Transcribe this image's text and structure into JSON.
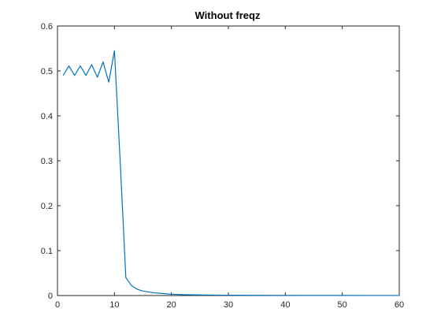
{
  "chart_data": {
    "type": "line",
    "title": "Without freqz",
    "xlabel": "",
    "ylabel": "",
    "xlim": [
      0,
      60
    ],
    "ylim": [
      0,
      0.6
    ],
    "xticks": [
      0,
      10,
      20,
      30,
      40,
      50,
      60
    ],
    "yticks": [
      0,
      0.1,
      0.2,
      0.3,
      0.4,
      0.5,
      0.6
    ],
    "xtick_labels": [
      "0",
      "10",
      "20",
      "30",
      "40",
      "50",
      "60"
    ],
    "ytick_labels": [
      "0",
      "0.1",
      "0.2",
      "0.3",
      "0.4",
      "0.5",
      "0.6"
    ],
    "grid": false,
    "series": [
      {
        "color": "#0072BD",
        "x": [
          1,
          2,
          3,
          4,
          5,
          6,
          7,
          8,
          9,
          10,
          11,
          12,
          13,
          14,
          15,
          16,
          17,
          18,
          19,
          20,
          22,
          24,
          26,
          28,
          30,
          35,
          40,
          45,
          50,
          55,
          60
        ],
        "y": [
          0.49,
          0.511,
          0.49,
          0.511,
          0.49,
          0.514,
          0.486,
          0.52,
          0.475,
          0.545,
          0.3,
          0.04,
          0.022,
          0.014,
          0.01,
          0.008,
          0.006,
          0.005,
          0.004,
          0.003,
          0.002,
          0.0015,
          0.0012,
          0.001,
          0.0008,
          0.0005,
          0.0003,
          0.0002,
          0.0002,
          0.0001,
          0.0001
        ]
      }
    ]
  }
}
